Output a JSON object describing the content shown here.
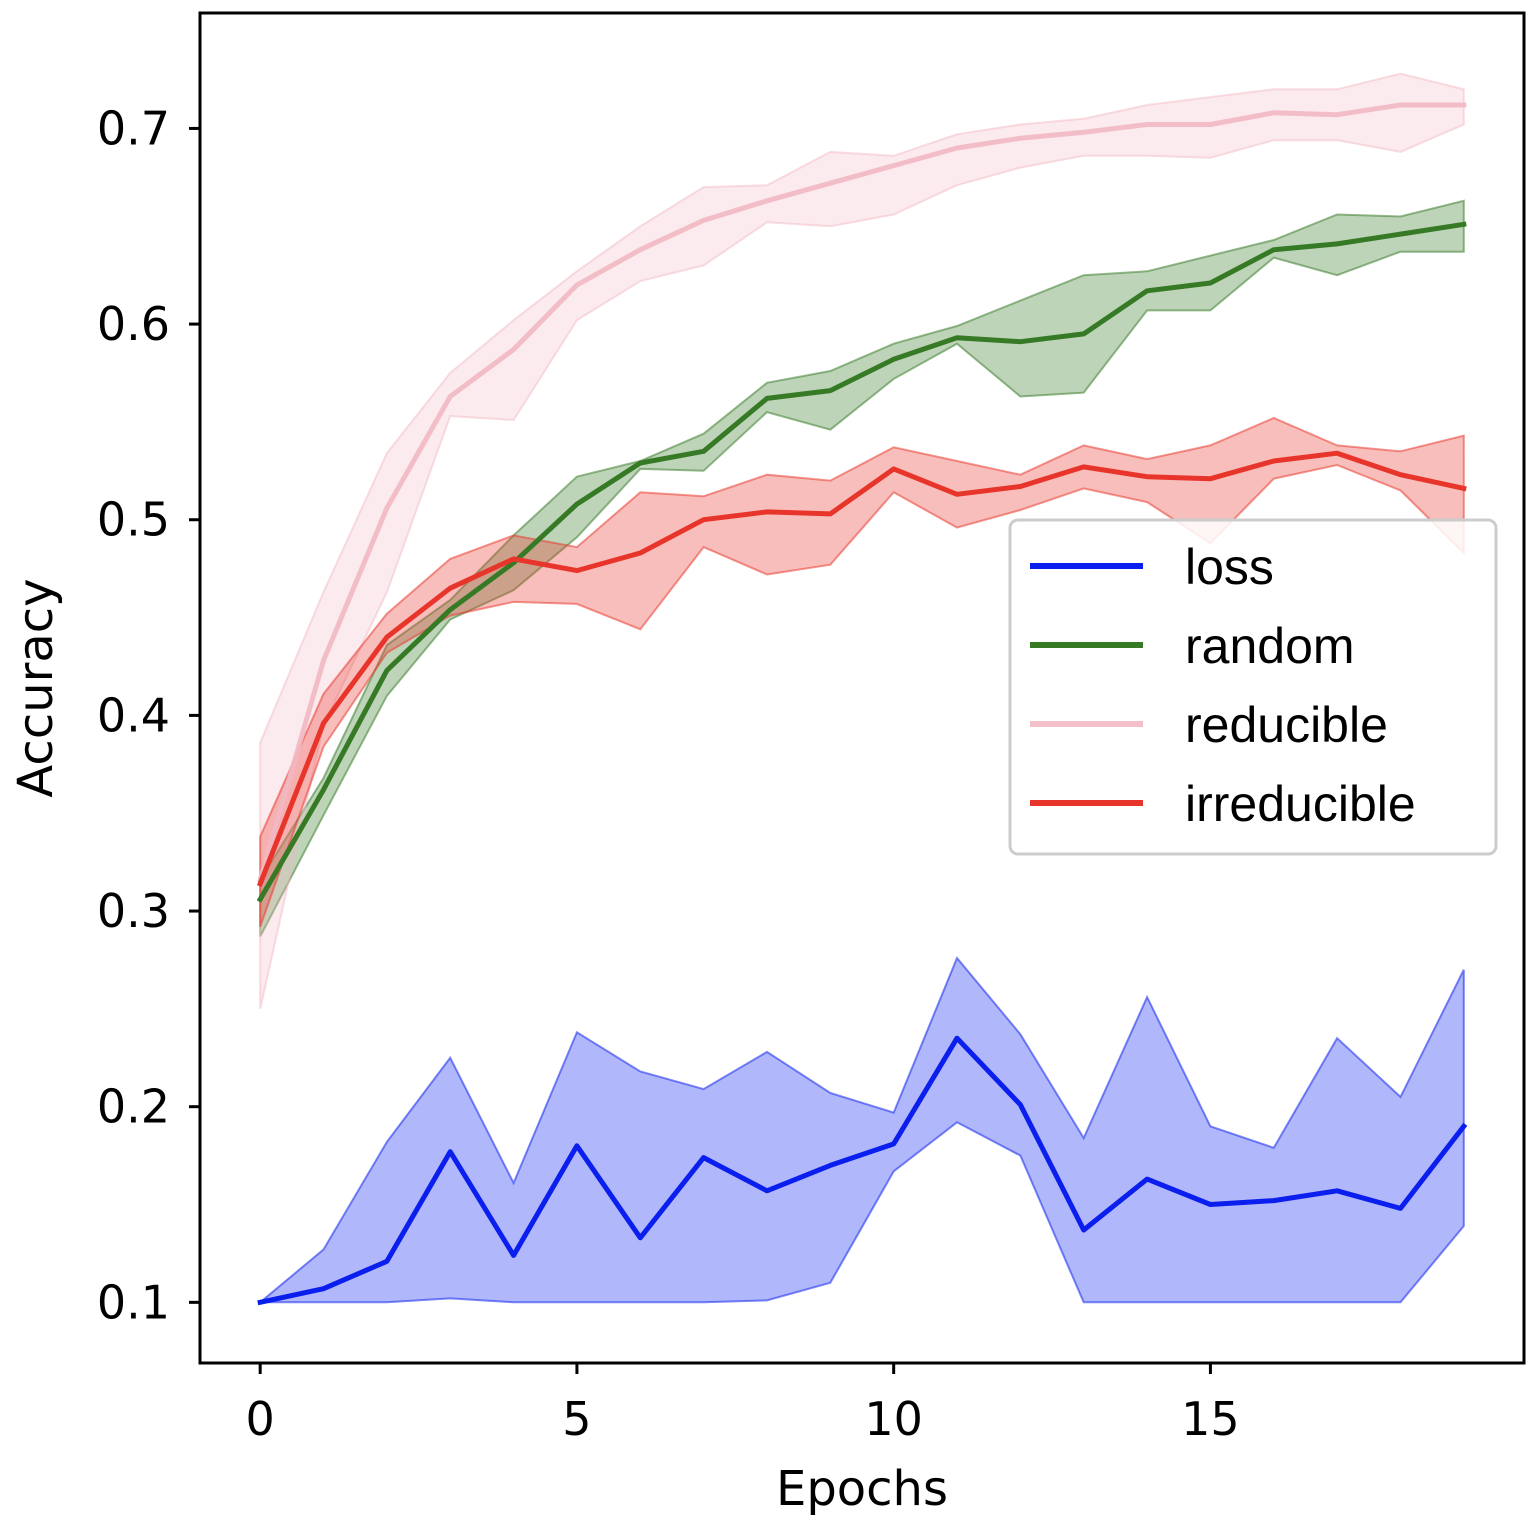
{
  "chart_data": {
    "type": "line",
    "title": "",
    "xlabel": "Epochs",
    "ylabel": "Accuracy",
    "xlim": [
      -0.95,
      19.95
    ],
    "ylim": [
      0.069,
      0.759
    ],
    "xticks": [
      0,
      5,
      10,
      15
    ],
    "xtick_labels": [
      "0",
      "5",
      "10",
      "15"
    ],
    "yticks": [
      0.1,
      0.2,
      0.3,
      0.4,
      0.5,
      0.6,
      0.7
    ],
    "ytick_labels": [
      "0.1",
      "0.2",
      "0.3",
      "0.4",
      "0.5",
      "0.6",
      "0.7"
    ],
    "legend_position": "center-right",
    "x": [
      0,
      1,
      2,
      3,
      4,
      5,
      6,
      7,
      8,
      9,
      10,
      11,
      12,
      13,
      14,
      15,
      16,
      17,
      18,
      19
    ],
    "series": [
      {
        "name": "loss",
        "color": "#0a1eee",
        "band_opacity": 0.32,
        "line_opacity": 1,
        "values": [
          0.1,
          0.107,
          0.121,
          0.177,
          0.124,
          0.18,
          0.133,
          0.174,
          0.157,
          0.17,
          0.181,
          0.235,
          0.201,
          0.137,
          0.163,
          0.15,
          0.152,
          0.157,
          0.148,
          0.19
        ],
        "lower": [
          0.1,
          0.1,
          0.1,
          0.102,
          0.1,
          0.1,
          0.1,
          0.1,
          0.101,
          0.11,
          0.167,
          0.192,
          0.175,
          0.1,
          0.1,
          0.1,
          0.1,
          0.1,
          0.1,
          0.139
        ],
        "upper": [
          0.1,
          0.127,
          0.182,
          0.225,
          0.161,
          0.238,
          0.218,
          0.209,
          0.228,
          0.207,
          0.197,
          0.276,
          0.237,
          0.184,
          0.256,
          0.19,
          0.179,
          0.235,
          0.205,
          0.27
        ]
      },
      {
        "name": "random",
        "color": "#367a26",
        "band_opacity": 0.32,
        "line_opacity": 1,
        "values": [
          0.306,
          0.362,
          0.423,
          0.454,
          0.478,
          0.508,
          0.529,
          0.535,
          0.562,
          0.566,
          0.582,
          0.593,
          0.591,
          0.595,
          0.617,
          0.621,
          0.638,
          0.641,
          0.646,
          0.651
        ],
        "lower": [
          0.287,
          0.349,
          0.41,
          0.449,
          0.464,
          0.491,
          0.526,
          0.525,
          0.555,
          0.546,
          0.572,
          0.59,
          0.563,
          0.565,
          0.607,
          0.607,
          0.634,
          0.625,
          0.637,
          0.637
        ],
        "upper": [
          0.316,
          0.368,
          0.436,
          0.459,
          0.492,
          0.522,
          0.53,
          0.544,
          0.57,
          0.576,
          0.59,
          0.599,
          0.612,
          0.625,
          0.627,
          0.635,
          0.643,
          0.656,
          0.655,
          0.663
        ]
      },
      {
        "name": "reducible",
        "color": "#f2b8c2",
        "band_opacity": 0.28,
        "line_opacity": 0.9,
        "values": [
          0.316,
          0.428,
          0.506,
          0.563,
          0.587,
          0.62,
          0.638,
          0.653,
          0.663,
          0.672,
          0.681,
          0.69,
          0.695,
          0.698,
          0.702,
          0.702,
          0.708,
          0.707,
          0.712,
          0.712
        ],
        "lower": [
          0.25,
          0.395,
          0.463,
          0.553,
          0.551,
          0.602,
          0.622,
          0.63,
          0.652,
          0.65,
          0.656,
          0.671,
          0.68,
          0.686,
          0.686,
          0.685,
          0.694,
          0.694,
          0.688,
          0.702
        ],
        "upper": [
          0.386,
          0.463,
          0.534,
          0.575,
          0.602,
          0.627,
          0.65,
          0.67,
          0.671,
          0.688,
          0.686,
          0.697,
          0.702,
          0.705,
          0.712,
          0.716,
          0.72,
          0.72,
          0.728,
          0.72
        ]
      },
      {
        "name": "irreducible",
        "color": "#e8352b",
        "band_opacity": 0.32,
        "line_opacity": 1,
        "values": [
          0.314,
          0.396,
          0.44,
          0.465,
          0.48,
          0.474,
          0.483,
          0.5,
          0.504,
          0.503,
          0.526,
          0.513,
          0.517,
          0.527,
          0.522,
          0.521,
          0.53,
          0.534,
          0.523,
          0.516
        ],
        "lower": [
          0.292,
          0.384,
          0.432,
          0.451,
          0.458,
          0.457,
          0.444,
          0.486,
          0.472,
          0.477,
          0.514,
          0.496,
          0.505,
          0.516,
          0.509,
          0.488,
          0.521,
          0.528,
          0.515,
          0.483
        ],
        "upper": [
          0.338,
          0.411,
          0.452,
          0.48,
          0.492,
          0.486,
          0.514,
          0.512,
          0.523,
          0.52,
          0.537,
          0.53,
          0.523,
          0.538,
          0.531,
          0.538,
          0.552,
          0.538,
          0.535,
          0.543
        ]
      }
    ]
  }
}
